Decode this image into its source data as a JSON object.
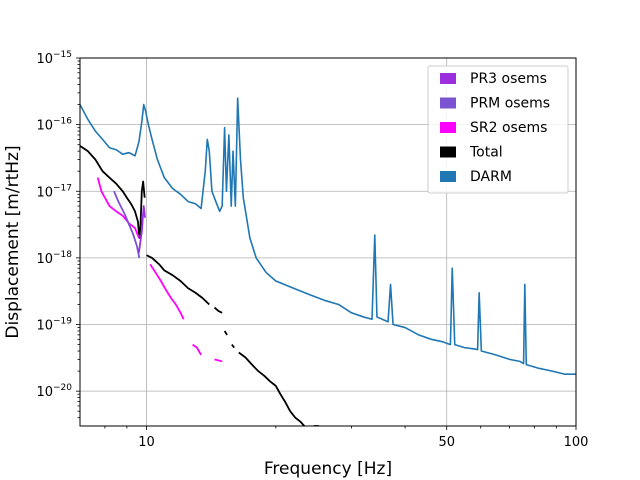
{
  "chart_data": {
    "type": "line",
    "title": "",
    "xlabel": "Frequency [Hz]",
    "ylabel": "Displacement [m/rtHz]",
    "xscale": "log",
    "yscale": "log",
    "xlim": [
      7,
      100
    ],
    "ylim": [
      3e-21,
      1e-15
    ],
    "grid": true,
    "legend_position": "top-right",
    "x_ticks": [
      {
        "value": 10,
        "label": "10"
      },
      {
        "value": 50,
        "label": "50"
      },
      {
        "value": 100,
        "label": "100"
      }
    ],
    "y_ticks": [
      {
        "value": 1e-20,
        "base": "10",
        "exp": "−20"
      },
      {
        "value": 1e-19,
        "base": "10",
        "exp": "−19"
      },
      {
        "value": 1e-18,
        "base": "10",
        "exp": "−18"
      },
      {
        "value": 1e-17,
        "base": "10",
        "exp": "−17"
      },
      {
        "value": 1e-16,
        "base": "10",
        "exp": "−16"
      },
      {
        "value": 1e-15,
        "base": "10",
        "exp": "−15"
      }
    ],
    "series": [
      {
        "name": "DARM",
        "color": "#1f77b4",
        "points": [
          [
            7.0,
            2e-16
          ],
          [
            7.3,
            1.2e-16
          ],
          [
            7.6,
            8e-17
          ],
          [
            7.9,
            6e-17
          ],
          [
            8.2,
            4.5e-17
          ],
          [
            8.5,
            4.2e-17
          ],
          [
            8.8,
            3.6e-17
          ],
          [
            9.1,
            3.8e-17
          ],
          [
            9.4,
            3.4e-17
          ],
          [
            9.6,
            5.5e-17
          ],
          [
            9.75,
            1.1e-16
          ],
          [
            9.85,
            2e-16
          ],
          [
            9.95,
            1.6e-16
          ],
          [
            10.1,
            1e-16
          ],
          [
            10.3,
            6e-17
          ],
          [
            10.6,
            3e-17
          ],
          [
            11.0,
            1.6e-17
          ],
          [
            11.5,
            1.1e-17
          ],
          [
            12.0,
            9e-18
          ],
          [
            12.5,
            7e-18
          ],
          [
            13.0,
            6.5e-18
          ],
          [
            13.4,
            5.5e-18
          ],
          [
            13.7,
            2e-17
          ],
          [
            13.85,
            6e-17
          ],
          [
            14.0,
            4e-17
          ],
          [
            14.2,
            1e-17
          ],
          [
            14.5,
            7e-18
          ],
          [
            14.8,
            5e-18
          ],
          [
            15.0,
            6e-18
          ],
          [
            15.2,
            9e-17
          ],
          [
            15.35,
            1e-17
          ],
          [
            15.55,
            7e-17
          ],
          [
            15.75,
            6e-18
          ],
          [
            15.9,
            4e-17
          ],
          [
            16.1,
            6e-18
          ],
          [
            16.3,
            2.5e-16
          ],
          [
            16.55,
            3e-17
          ],
          [
            16.8,
            8e-18
          ],
          [
            17.1,
            4e-18
          ],
          [
            17.4,
            2e-18
          ],
          [
            18.0,
            1e-18
          ],
          [
            19.0,
            6e-19
          ],
          [
            20.0,
            4.5e-19
          ],
          [
            22.0,
            3.5e-19
          ],
          [
            24.0,
            2.8e-19
          ],
          [
            26.0,
            2.3e-19
          ],
          [
            28.0,
            2e-19
          ],
          [
            30.0,
            1.5e-19
          ],
          [
            32.0,
            1.3e-19
          ],
          [
            33.5,
            1.2e-19
          ],
          [
            34.0,
            2.2e-18
          ],
          [
            34.4,
            1.3e-19
          ],
          [
            36.5,
            1.1e-19
          ],
          [
            37.0,
            4e-19
          ],
          [
            37.5,
            1e-19
          ],
          [
            40.0,
            9e-20
          ],
          [
            43.0,
            7e-20
          ],
          [
            46.0,
            6e-20
          ],
          [
            49.0,
            5.5e-20
          ],
          [
            51.0,
            5e-20
          ],
          [
            51.5,
            7e-19
          ],
          [
            52.2,
            5e-20
          ],
          [
            55.0,
            4.5e-20
          ],
          [
            58.0,
            4.3e-20
          ],
          [
            59.0,
            4.2e-20
          ],
          [
            59.5,
            3e-19
          ],
          [
            60.2,
            4e-20
          ],
          [
            65.0,
            3.5e-20
          ],
          [
            70.0,
            3e-20
          ],
          [
            74.0,
            2.8e-20
          ],
          [
            75.5,
            2.6e-20
          ],
          [
            76.0,
            4e-19
          ],
          [
            76.6,
            2.5e-20
          ],
          [
            82.0,
            2.2e-20
          ],
          [
            88.0,
            2e-20
          ],
          [
            94.0,
            1.8e-20
          ],
          [
            100.0,
            1.8e-20
          ]
        ]
      },
      {
        "name": "Total",
        "color": "#000000",
        "segments": [
          [
            [
              7.0,
              4.8e-17
            ],
            [
              7.3,
              4e-17
            ],
            [
              7.6,
              3e-17
            ],
            [
              7.9,
              2e-17
            ],
            [
              8.2,
              1.6e-17
            ],
            [
              8.5,
              1.3e-17
            ],
            [
              8.8,
              1e-17
            ],
            [
              9.0,
              8e-18
            ],
            [
              9.2,
              6.5e-18
            ],
            [
              9.4,
              5e-18
            ],
            [
              9.55,
              3.5e-18
            ],
            [
              9.62,
              2e-18
            ],
            [
              9.68,
              3e-18
            ],
            [
              9.75,
              1e-17
            ],
            [
              9.82,
              1.4e-17
            ],
            [
              9.9,
              8e-18
            ]
          ],
          [
            [
              10.0,
              1.1e-18
            ],
            [
              10.3,
              1e-18
            ],
            [
              10.7,
              8e-19
            ],
            [
              11.0,
              6.5e-19
            ],
            [
              11.5,
              5.5e-19
            ],
            [
              12.0,
              4.5e-19
            ],
            [
              12.5,
              3.5e-19
            ],
            [
              13.0,
              3e-19
            ],
            [
              13.5,
              2.5e-19
            ],
            [
              14.0,
              2e-19
            ]
          ],
          [
            [
              14.4,
              1.8e-19
            ],
            [
              14.7,
              1.6e-19
            ],
            [
              15.0,
              1.5e-19
            ]
          ],
          [
            [
              15.2,
              8e-20
            ],
            [
              15.4,
              7e-20
            ]
          ],
          [
            [
              15.8,
              5e-20
            ],
            [
              16.0,
              4.5e-20
            ]
          ],
          [
            [
              16.4,
              3.8e-20
            ],
            [
              17.0,
              3.2e-20
            ],
            [
              17.6,
              2.5e-20
            ],
            [
              18.2,
              2e-20
            ],
            [
              18.8,
              1.7e-20
            ],
            [
              19.4,
              1.4e-20
            ],
            [
              20.0,
              1.2e-20
            ],
            [
              20.5,
              9e-21
            ],
            [
              21.0,
              7e-21
            ],
            [
              21.6,
              5e-21
            ],
            [
              22.2,
              4e-21
            ],
            [
              22.8,
              3.5e-21
            ],
            [
              23.3,
              3e-21
            ]
          ],
          [
            [
              24.5,
              3e-21
            ],
            [
              25.2,
              3e-21
            ]
          ]
        ]
      },
      {
        "name": "SR2 osems",
        "color": "#ff00ff",
        "segments": [
          [
            [
              7.7,
              1.6e-17
            ],
            [
              7.85,
              1e-17
            ],
            [
              8.0,
              8e-18
            ],
            [
              8.2,
              6e-18
            ],
            [
              8.5,
              5e-18
            ],
            [
              8.8,
              4.3e-18
            ],
            [
              9.1,
              3.3e-18
            ],
            [
              9.4,
              2.8e-18
            ],
            [
              9.6,
              2e-18
            ]
          ],
          [
            [
              10.2,
              8e-19
            ],
            [
              10.5,
              6e-19
            ],
            [
              10.8,
              4.5e-19
            ],
            [
              11.1,
              3.3e-19
            ],
            [
              11.4,
              2.5e-19
            ],
            [
              11.7,
              2e-19
            ],
            [
              12.0,
              1.5e-19
            ],
            [
              12.2,
              1.2e-19
            ]
          ],
          [
            [
              12.8,
              5e-20
            ],
            [
              13.1,
              4.5e-20
            ],
            [
              13.4,
              3.5e-20
            ]
          ],
          [
            [
              14.4,
              3e-20
            ],
            [
              15.0,
              2.8e-20
            ]
          ]
        ]
      },
      {
        "name": "PRM osems",
        "color": "#7b52d1",
        "segments": [
          [
            [
              8.4,
              1e-17
            ],
            [
              8.6,
              7e-18
            ],
            [
              8.9,
              4.5e-18
            ],
            [
              9.1,
              3.2e-18
            ],
            [
              9.3,
              2.3e-18
            ],
            [
              9.5,
              1.5e-18
            ],
            [
              9.62,
              1e-18
            ]
          ]
        ]
      },
      {
        "name": "PR3 osems",
        "color": "#9b2fe0",
        "segments": [
          [
            [
              9.6,
              1.2e-18
            ],
            [
              9.75,
              2.5e-18
            ],
            [
              9.85,
              6e-18
            ],
            [
              9.92,
              4e-18
            ]
          ]
        ]
      }
    ],
    "legend": [
      {
        "name": "PR3 osems",
        "color": "#9b2fe0"
      },
      {
        "name": "PRM osems",
        "color": "#7b52d1"
      },
      {
        "name": "SR2 osems",
        "color": "#ff00ff"
      },
      {
        "name": "Total",
        "color": "#000000"
      },
      {
        "name": "DARM",
        "color": "#1f77b4"
      }
    ]
  }
}
